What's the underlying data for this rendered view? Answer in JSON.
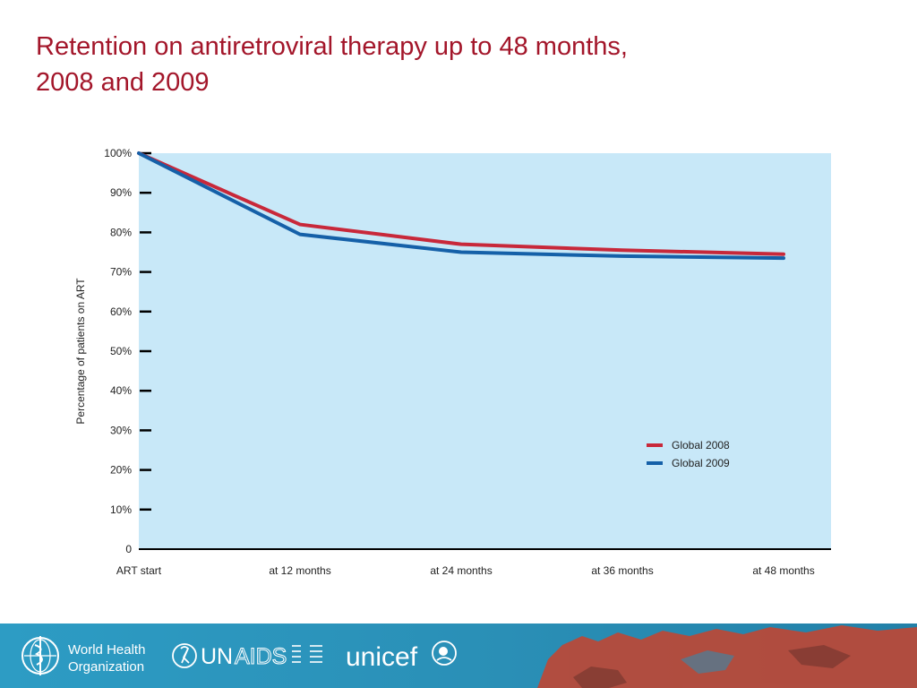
{
  "slide": {
    "title_line1": "Retention on antiretroviral therapy up to 48 months,",
    "title_line2": "2008 and 2009"
  },
  "colors": {
    "title": "#a3162a",
    "plot_background": "#c8e8f8",
    "series_2008": "#c8283a",
    "series_2009": "#1560a8",
    "footer": "#2a8fb6",
    "map": "#b84a3a"
  },
  "chart_data": {
    "type": "line",
    "categories": [
      "ART start",
      "at 12 months",
      "at 24 months",
      "at 36 months",
      "at 48 months"
    ],
    "series": [
      {
        "name": "Global 2008",
        "values": [
          100,
          82,
          77,
          75.5,
          74.5
        ]
      },
      {
        "name": "Global 2009",
        "values": [
          100,
          79.5,
          75,
          74,
          73.5
        ]
      }
    ],
    "ylabel": "Percentage of patients on ART",
    "ylim": [
      0,
      100
    ],
    "yticks": [
      "0",
      "10%",
      "20%",
      "30%",
      "40%",
      "50%",
      "60%",
      "70%",
      "80%",
      "90%",
      "100%"
    ],
    "grid": false,
    "legend": "bottom-right"
  },
  "footer": {
    "who_line1": "World Health",
    "who_line2": "Organization",
    "unaids_un": "UN",
    "unaids_aids": "AIDS",
    "unicef": "unicef",
    "who_icon": "who-emblem-icon",
    "unaids_icon": "unaids-ribbon-icon",
    "unicef_icon": "unicef-globe-icon"
  }
}
